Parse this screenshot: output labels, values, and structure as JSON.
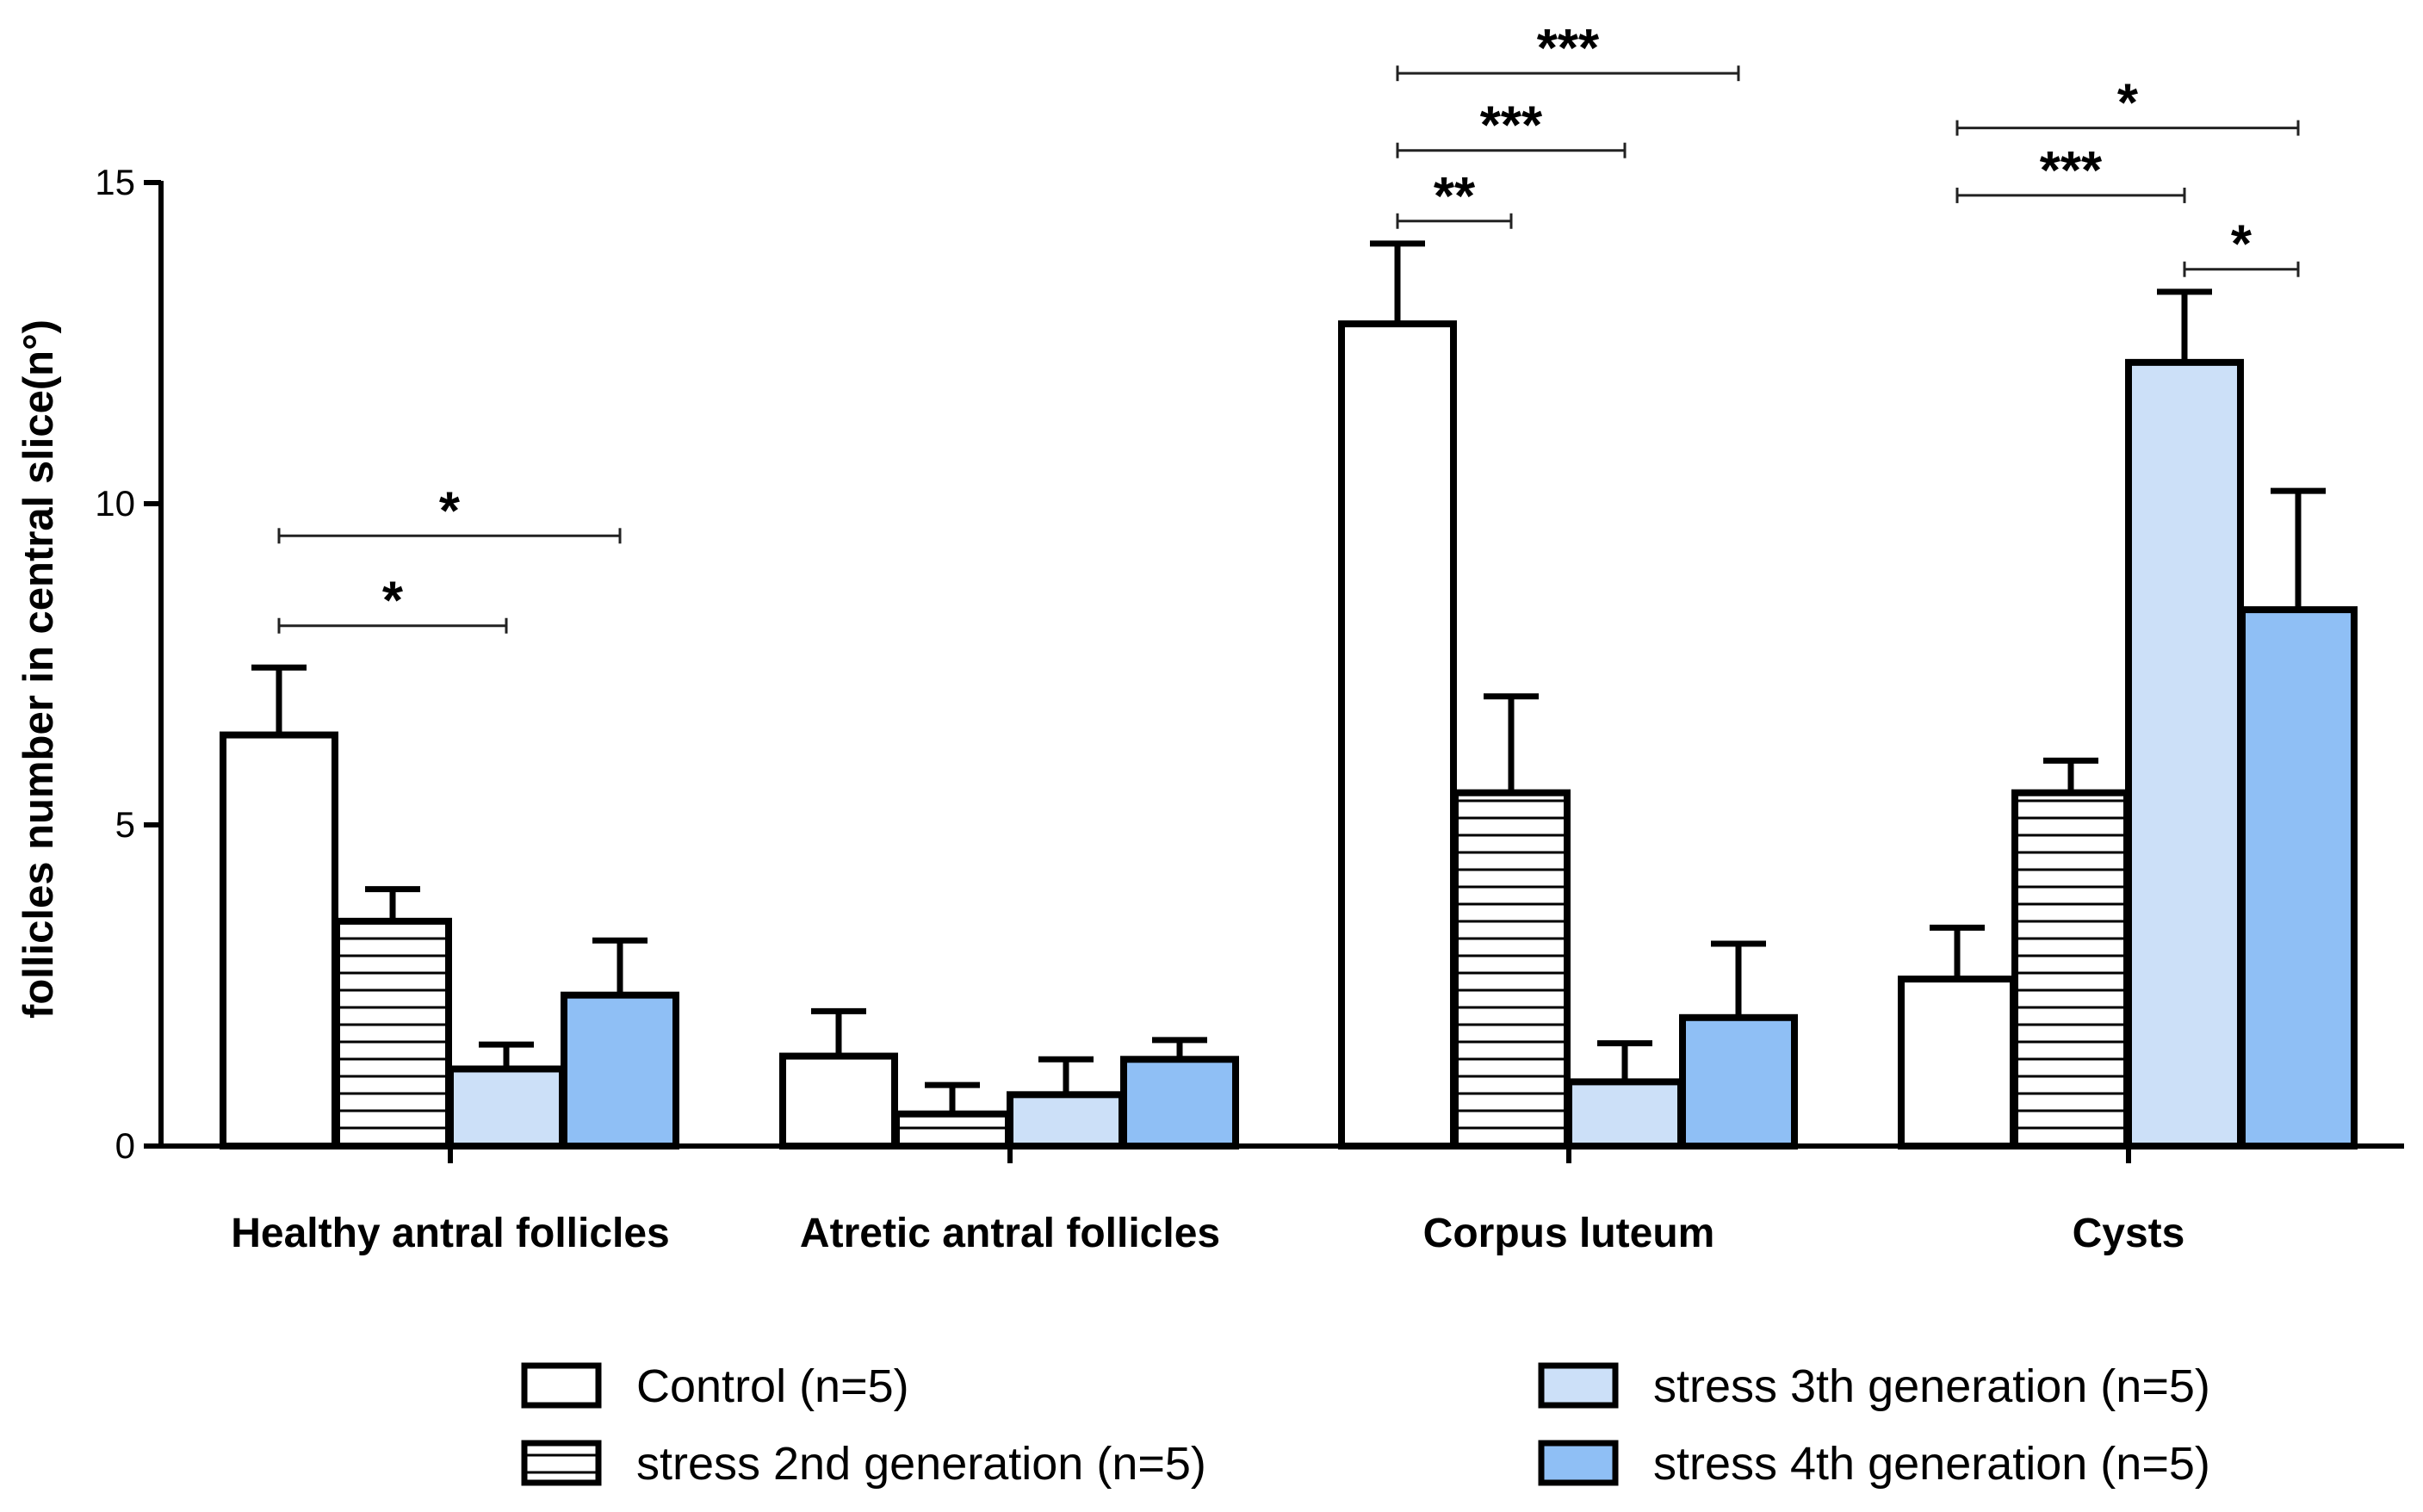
{
  "chart_data": {
    "type": "bar",
    "title": "",
    "xlabel": "",
    "ylabel": "follicles number in central slice(n°)",
    "ylim": [
      0,
      15
    ],
    "yticks": [
      0,
      5,
      10,
      15
    ],
    "ytick_labels": [
      "0",
      "5",
      "10",
      "15"
    ],
    "grid": false,
    "legend_position": "bottom",
    "categories": [
      "Healthy antral follicles",
      "Atretic antral follicles",
      "Corpus luteum",
      "Cysts"
    ],
    "series": [
      {
        "name": "Control (n=5)",
        "fill": "#ffffff",
        "pattern": "none",
        "values": [
          6.4,
          1.4,
          12.8,
          2.6
        ],
        "errors": [
          1.05,
          0.7,
          1.25,
          0.8
        ]
      },
      {
        "name": "stress 2nd generation (n=5)",
        "fill": "#ffffff",
        "pattern": "horizontal-stripes",
        "values": [
          3.5,
          0.5,
          5.5,
          5.5
        ],
        "errors": [
          0.5,
          0.45,
          1.5,
          0.5
        ]
      },
      {
        "name": "stress 3th generation (n=5)",
        "fill": "#cce0f8",
        "pattern": "none",
        "values": [
          1.2,
          0.8,
          1.0,
          12.2
        ],
        "errors": [
          0.38,
          0.55,
          0.6,
          1.1
        ]
      },
      {
        "name": "stress 4th generation (n=5)",
        "fill": "#8fbff5",
        "pattern": "none",
        "values": [
          2.35,
          1.35,
          2.0,
          8.35
        ],
        "errors": [
          0.85,
          0.3,
          1.15,
          1.85
        ]
      }
    ],
    "significance": [
      {
        "category": 0,
        "from": 0,
        "to": 3,
        "label": "*",
        "y": 9.5
      },
      {
        "category": 0,
        "from": 0,
        "to": 2,
        "label": "*",
        "y": 8.1
      },
      {
        "category": 2,
        "from": 0,
        "to": 3,
        "label": "***",
        "y": 16.7
      },
      {
        "category": 2,
        "from": 0,
        "to": 2,
        "label": "***",
        "y": 15.5
      },
      {
        "category": 2,
        "from": 0,
        "to": 1,
        "label": "**",
        "y": 14.4
      },
      {
        "category": 3,
        "from": 0,
        "to": 3,
        "label": "*",
        "y": 15.85
      },
      {
        "category": 3,
        "from": 0,
        "to": 2,
        "label": "***",
        "y": 14.8
      },
      {
        "category": 3,
        "from": 2,
        "to": 3,
        "label": "*",
        "y": 13.65
      }
    ]
  }
}
